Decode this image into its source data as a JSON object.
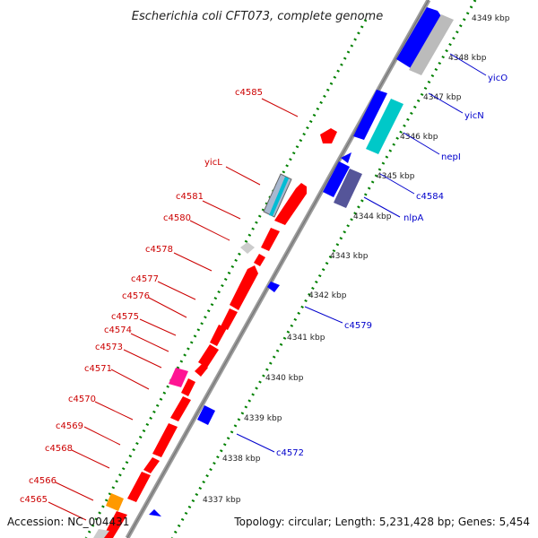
{
  "title": "Escherichia coli CFT073, complete genome",
  "footer": {
    "accession": "Accession: NC_004431",
    "summary": "Topology: circular; Length: 5,231,428 bp; Genes: 5,454"
  },
  "ruler": [
    "4337 kbp",
    "4338 kbp",
    "4339 kbp",
    "4340 kbp",
    "4341 kbp",
    "4342 kbp",
    "4343 kbp",
    "4344 kbp",
    "4345 kbp",
    "4346 kbp",
    "4347 kbp",
    "4348 kbp",
    "4349 kbp"
  ],
  "colors": {
    "backbone": "#808080",
    "forward_gene": "#ff0000",
    "reverse_gene": "#0000ff",
    "cyan_gene": "#00c8c8",
    "grey_gene": "#bbbbbb",
    "dark_gene": "#555599",
    "magenta_gene": "#ff1493",
    "orange_gene": "#ff9900",
    "ticks": "#008000",
    "label_forward": "#cc0000",
    "label_reverse": "#0000cc"
  },
  "labels_forward": [
    "c4585",
    "yicL",
    "c4581",
    "c4580",
    "c4578",
    "c4577",
    "c4576",
    "c4575",
    "c4574",
    "c4573",
    "c4571",
    "c4570",
    "c4569",
    "c4568",
    "c4566",
    "c4565"
  ],
  "labels_reverse": [
    "yicO",
    "yicN",
    "nepI",
    "c4584",
    "nlpA",
    "c4579",
    "c4572"
  ]
}
